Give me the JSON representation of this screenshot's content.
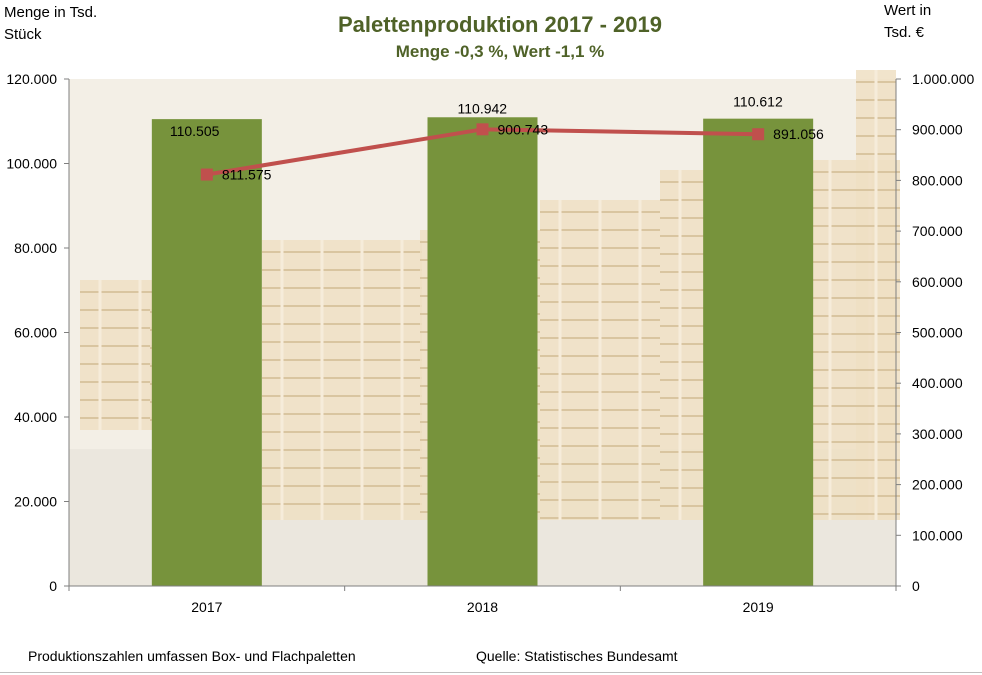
{
  "title": "Palettenproduktion 2017 -  2019",
  "subtitle": "Menge -0,3 %, Wert -1,1 %",
  "left_axis_title": "Menge in Tsd.\nStück",
  "right_axis_title": "Wert in\nTsd. €",
  "footer_note": "Produktionszahlen umfassen Box- und Flachpaletten",
  "footer_source": "Quelle: Statistisches Bundesamt",
  "colors": {
    "bar": "#77933c",
    "line": "#c0504d",
    "title": "#4f6228",
    "axis": "#7f7f7f"
  },
  "chart_data": {
    "type": "bar+line",
    "categories": [
      "2017",
      "2018",
      "2019"
    ],
    "series": [
      {
        "type": "bar",
        "axis": "left",
        "values": [
          110505,
          110942,
          110612
        ],
        "labels": [
          "110.505",
          "110.942",
          "110.612"
        ]
      },
      {
        "type": "line",
        "axis": "right",
        "values": [
          811575,
          900743,
          891056
        ],
        "labels": [
          "811.575",
          "900.743",
          "891.056"
        ]
      }
    ],
    "y_left": {
      "min": 0,
      "max": 120000,
      "ticks": [
        "0",
        "20.000",
        "40.000",
        "60.000",
        "80.000",
        "100.000",
        "120.000"
      ]
    },
    "y_right": {
      "min": 0,
      "max": 1000000,
      "ticks": [
        "0",
        "100.000",
        "200.000",
        "300.000",
        "400.000",
        "500.000",
        "600.000",
        "700.000",
        "800.000",
        "900.000",
        "1.000.000"
      ]
    },
    "background": "photo of stacked wooden pallets",
    "grid": false
  }
}
